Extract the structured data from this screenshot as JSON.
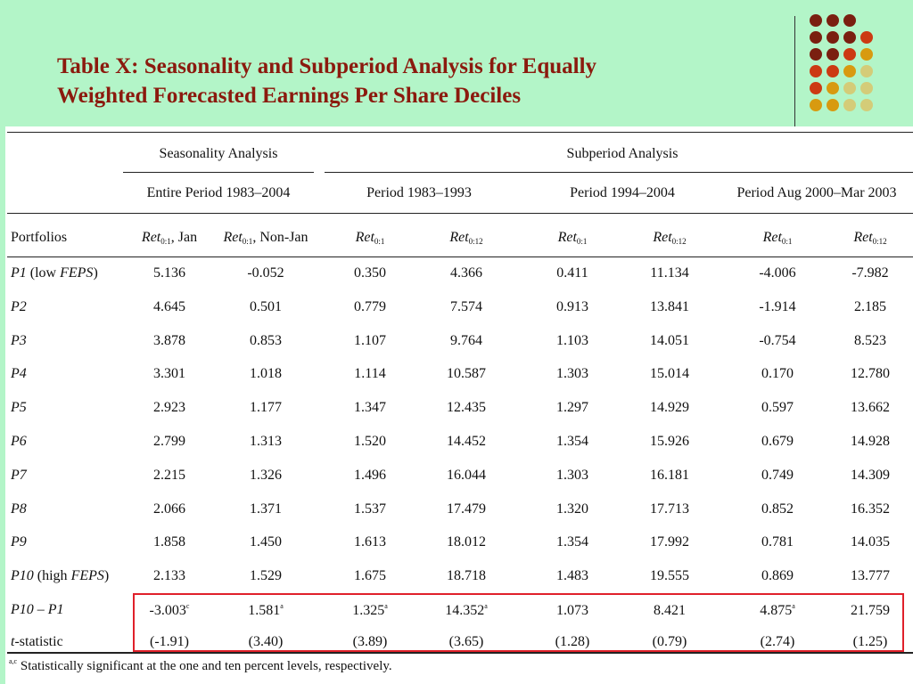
{
  "slide": {
    "title_line1": "Table X: Seasonality and Subperiod Analysis for Equally",
    "title_line2": "Weighted Forecasted Earnings Per Share Deciles",
    "title_color": "#8b1a0e",
    "background_color": "#b3f5c8",
    "decoration": "dot-grid-logo"
  },
  "table": {
    "group_headers": {
      "seasonality": "Seasonality Analysis",
      "subperiod": "Subperiod Analysis"
    },
    "period_headers": [
      "Entire Period 1983–2004",
      "Period 1983–1993",
      "Period 1994–2004",
      "Period Aug 2000–Mar 2003"
    ],
    "columns": {
      "portfolios": "Portfolios",
      "c1_base": "Ret",
      "c1_sub": "0:1",
      "c1_suffix": ", Jan",
      "c2_base": "Ret",
      "c2_sub": "0:1",
      "c2_suffix": ", Non-Jan",
      "c3_base": "Ret",
      "c3_sub": "0:1",
      "c4_base": "Ret",
      "c4_sub": "0:12",
      "c5_base": "Ret",
      "c5_sub": "0:1",
      "c6_base": "Ret",
      "c6_sub": "0:12",
      "c7_base": "Ret",
      "c7_sub": "0:1",
      "c8_base": "Ret",
      "c8_sub": "0:12"
    },
    "rows": [
      {
        "label_i": "P1",
        "label_rest": " (low ",
        "label_i2": "FEPS",
        "label_end": ")",
        "values": [
          "5.136",
          "-0.052",
          "0.350",
          "4.366",
          "0.411",
          "11.134",
          "-4.006",
          "-7.982"
        ]
      },
      {
        "label_i": "P2",
        "label_rest": "",
        "label_i2": "",
        "label_end": "",
        "values": [
          "4.645",
          "0.501",
          "0.779",
          "7.574",
          "0.913",
          "13.841",
          "-1.914",
          "2.185"
        ]
      },
      {
        "label_i": "P3",
        "label_rest": "",
        "label_i2": "",
        "label_end": "",
        "values": [
          "3.878",
          "0.853",
          "1.107",
          "9.764",
          "1.103",
          "14.051",
          "-0.754",
          "8.523"
        ]
      },
      {
        "label_i": "P4",
        "label_rest": "",
        "label_i2": "",
        "label_end": "",
        "values": [
          "3.301",
          "1.018",
          "1.114",
          "10.587",
          "1.303",
          "15.014",
          "0.170",
          "12.780"
        ]
      },
      {
        "label_i": "P5",
        "label_rest": "",
        "label_i2": "",
        "label_end": "",
        "values": [
          "2.923",
          "1.177",
          "1.347",
          "12.435",
          "1.297",
          "14.929",
          "0.597",
          "13.662"
        ]
      },
      {
        "label_i": "P6",
        "label_rest": "",
        "label_i2": "",
        "label_end": "",
        "values": [
          "2.799",
          "1.313",
          "1.520",
          "14.452",
          "1.354",
          "15.926",
          "0.679",
          "14.928"
        ]
      },
      {
        "label_i": "P7",
        "label_rest": "",
        "label_i2": "",
        "label_end": "",
        "values": [
          "2.215",
          "1.326",
          "1.496",
          "16.044",
          "1.303",
          "16.181",
          "0.749",
          "14.309"
        ]
      },
      {
        "label_i": "P8",
        "label_rest": "",
        "label_i2": "",
        "label_end": "",
        "values": [
          "2.066",
          "1.371",
          "1.537",
          "17.479",
          "1.320",
          "17.713",
          "0.852",
          "16.352"
        ]
      },
      {
        "label_i": "P9",
        "label_rest": "",
        "label_i2": "",
        "label_end": "",
        "values": [
          "1.858",
          "1.450",
          "1.613",
          "18.012",
          "1.354",
          "17.992",
          "0.781",
          "14.035"
        ]
      },
      {
        "label_i": "P10",
        "label_rest": " (high ",
        "label_i2": "FEPS",
        "label_end": ")",
        "values": [
          "2.133",
          "1.529",
          "1.675",
          "18.718",
          "1.483",
          "19.555",
          "0.869",
          "13.777"
        ]
      }
    ],
    "diff_row": {
      "label": "P10 – P1",
      "values": [
        "-3.003",
        "1.581",
        "1.325",
        "14.352",
        "1.073",
        "8.421",
        "4.875",
        "21.759"
      ],
      "marks": [
        "c",
        "a",
        "a",
        "a",
        "",
        "",
        "a",
        ""
      ]
    },
    "tstat_row": {
      "label_i": "t",
      "label_rest": "-statistic",
      "values": [
        "(-1.91)",
        "(3.40)",
        "(3.89)",
        "(3.65)",
        "(1.28)",
        "(0.79)",
        "(2.74)",
        "(1.25)"
      ]
    },
    "footnote_marks": "a,c",
    "footnote": " Statistically significant at the one and ten percent levels, respectively.",
    "highlight_color": "#e0202a"
  }
}
